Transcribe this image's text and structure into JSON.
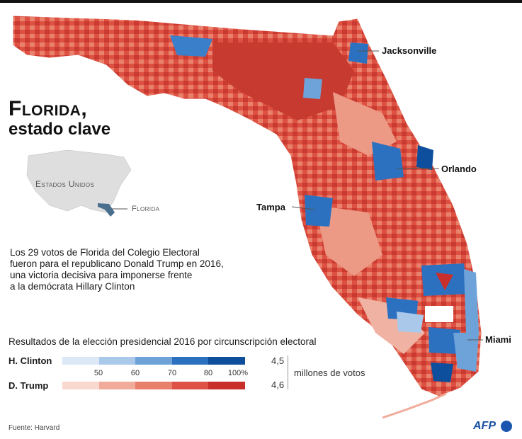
{
  "title": {
    "line1": "Florida,",
    "line2": "estado clave"
  },
  "inset": {
    "country_label": "Estados Unidos",
    "state_label": "Florida"
  },
  "description": [
    "Los 29 votos de Florida del Colegio Electoral",
    "fueron para el republicano Donald Trump en 2016,",
    "una victoria decisiva para imponerse frente",
    "a la demócrata Hillary Clinton"
  ],
  "cities": [
    "Jacksonville",
    "Orlando",
    "Tampa",
    "Miami"
  ],
  "legend": {
    "title": "Resultados de la elección presidencial 2016 por circunscripción electoral",
    "candidates": [
      {
        "name": "H. Clinton",
        "votes": "4,5",
        "colors": [
          "#dce8f6",
          "#a9c8ea",
          "#6ea3da",
          "#2c71c0",
          "#0d4f9c"
        ]
      },
      {
        "name": "D. Trump",
        "votes": "4,6",
        "colors": [
          "#f9d8cf",
          "#f1ab9a",
          "#e87f6b",
          "#dd5245",
          "#c92f2a"
        ]
      }
    ],
    "ticks": [
      "50",
      "60",
      "70",
      "80",
      "100%"
    ],
    "votes_unit": "millones de votos"
  },
  "source": "Fuente: Harvard",
  "brand": "AFP"
}
